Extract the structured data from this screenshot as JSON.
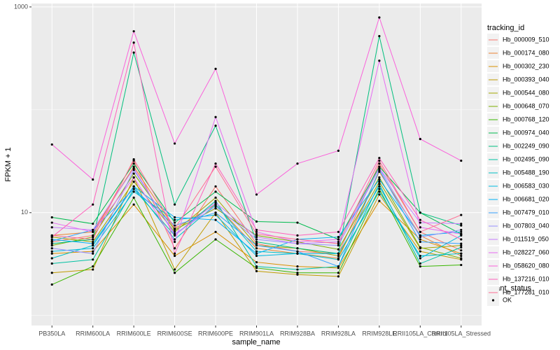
{
  "chart_data": {
    "type": "line",
    "scale": "log",
    "x_label": "sample_name",
    "y_label": "FPKM + 1",
    "legend_title": "tracking_id",
    "legend_position": "right",
    "status_legend_title": "quant_status",
    "status_legend_items": [
      "OK"
    ],
    "categories": [
      "PB350LA",
      "RRIM600LA",
      "RRIM600LE",
      "RRIM600SE",
      "RRIM600PE",
      "RRIM901LA",
      "RRIM928BA",
      "RRIM928LA",
      "RRIM928LE",
      "RRII105LA_Control",
      "RRII105LA_Stressed"
    ],
    "ylim": [
      0.8,
      1080
    ],
    "yticks": [
      10,
      1000
    ],
    "minor_yticks": [
      1,
      100
    ],
    "grid": true,
    "series": [
      {
        "name": "Hb_000009_510",
        "color": "#F8766D",
        "values": [
          5.2,
          6.0,
          32,
          4.5,
          18,
          5.0,
          4.2,
          4.0,
          30,
          6.5,
          4.3
        ]
      },
      {
        "name": "Hb_000174_080",
        "color": "#EA8331",
        "values": [
          6.0,
          6.5,
          28,
          7.0,
          12,
          4.5,
          4.0,
          3.6,
          25,
          6.0,
          3.8
        ]
      },
      {
        "name": "Hb_000302_230",
        "color": "#D89000",
        "values": [
          4.0,
          4.2,
          12,
          3.8,
          6.5,
          3.3,
          3.0,
          2.9,
          13,
          5.5,
          4.0
        ]
      },
      {
        "name": "Hb_000393_040",
        "color": "#C09B00",
        "values": [
          2.6,
          2.8,
          22,
          2.8,
          10,
          2.7,
          2.5,
          2.4,
          15,
          4.2,
          3.5
        ]
      },
      {
        "name": "Hb_000544_080",
        "color": "#A3A500",
        "values": [
          5.8,
          5.2,
          20,
          6.5,
          14,
          4.8,
          4.5,
          3.8,
          20,
          4.5,
          4.8
        ]
      },
      {
        "name": "Hb_000648_070",
        "color": "#7CAE00",
        "values": [
          4.8,
          5.8,
          24,
          6.8,
          11,
          6.0,
          5.2,
          4.4,
          22,
          4.6,
          3.6
        ]
      },
      {
        "name": "Hb_000768_120",
        "color": "#39B600",
        "values": [
          2.0,
          3.0,
          14,
          2.6,
          5.5,
          2.9,
          2.6,
          2.6,
          17,
          3.0,
          3.1
        ]
      },
      {
        "name": "Hb_000974_040",
        "color": "#00BB4E",
        "values": [
          9.0,
          7.8,
          30,
          8.0,
          16,
          8.2,
          8.0,
          5.5,
          28,
          10,
          6.2
        ]
      },
      {
        "name": "Hb_002249_090",
        "color": "#00BF7D",
        "values": [
          5.0,
          5.5,
          360,
          12,
          70,
          5.2,
          4.5,
          4.0,
          520,
          10,
          7.5
        ]
      },
      {
        "name": "Hb_002495_090",
        "color": "#00C1A3",
        "values": [
          3.2,
          3.5,
          17,
          6.0,
          13,
          3.0,
          2.8,
          3.0,
          19,
          3.2,
          4.6
        ]
      },
      {
        "name": "Hb_005488_190",
        "color": "#00BFC4",
        "values": [
          3.6,
          4.8,
          18,
          5.5,
          12,
          4.2,
          4.0,
          3.5,
          16,
          3.8,
          4.0
        ]
      },
      {
        "name": "Hb_006583_030",
        "color": "#00BAE0",
        "values": [
          4.2,
          4.5,
          16,
          8.5,
          9.5,
          3.8,
          4.0,
          4.0,
          18,
          3.6,
          6.0
        ]
      },
      {
        "name": "Hb_006681_020",
        "color": "#00B0F6",
        "values": [
          5.5,
          5.0,
          18,
          9.0,
          8.5,
          4.0,
          5.5,
          5.8,
          21,
          6.0,
          6.5
        ]
      },
      {
        "name": "Hb_007479_010",
        "color": "#35A2FF",
        "values": [
          5.3,
          6.8,
          17,
          7.5,
          10,
          4.8,
          4.2,
          3.0,
          26,
          5.2,
          5.0
        ]
      },
      {
        "name": "Hb_007803_040",
        "color": "#9590FF",
        "values": [
          4.5,
          4.0,
          26,
          6.2,
          11.5,
          5.5,
          5.0,
          4.8,
          27,
          5.8,
          6.8
        ]
      },
      {
        "name": "Hb_011519_050",
        "color": "#C77CFF",
        "values": [
          7.2,
          6.8,
          27,
          6.0,
          12.5,
          5.8,
          5.0,
          5.2,
          27,
          8.0,
          7.8
        ]
      },
      {
        "name": "Hb_028227_060",
        "color": "#E76BF3",
        "values": [
          8.0,
          6.5,
          22,
          5.2,
          85,
          6.5,
          5.2,
          5.5,
          300,
          7.2,
          6.2
        ]
      },
      {
        "name": "Hb_058620_080",
        "color": "#FA62DB",
        "values": [
          46,
          21,
          580,
          47,
          250,
          15,
          30,
          40,
          790,
          52,
          32
        ]
      },
      {
        "name": "Hb_137216_010",
        "color": "#FF62BC",
        "values": [
          5.8,
          12,
          450,
          4.0,
          30,
          6.8,
          6.0,
          6.5,
          34,
          8.5,
          5.5
        ]
      },
      {
        "name": "Hb_177281_010",
        "color": "#FF6C91",
        "values": [
          6.0,
          5.5,
          33,
          7.0,
          28,
          6.2,
          5.5,
          5.0,
          32,
          6.5,
          9.5
        ]
      }
    ]
  }
}
